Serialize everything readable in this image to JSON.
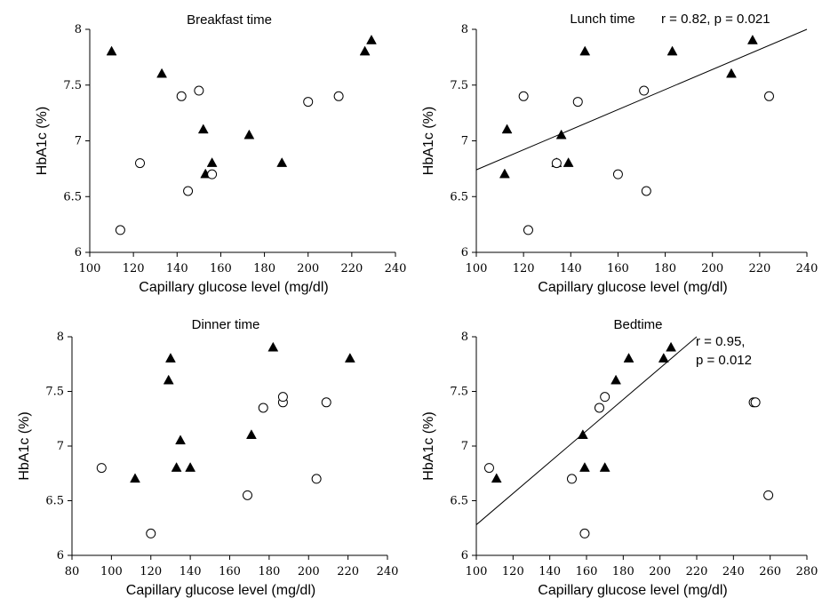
{
  "chart_data": [
    {
      "type": "scatter",
      "title": "Breakfast time",
      "xlabel": "Capillary glucose level (mg/dl)",
      "ylabel": "HbA1c (%)",
      "xlim": [
        100,
        240
      ],
      "ylim": [
        6,
        8
      ],
      "xticks": [
        100,
        120,
        140,
        160,
        180,
        200,
        220,
        240
      ],
      "yticks": [
        6,
        6.5,
        7,
        7.5,
        8
      ],
      "annotation": [],
      "regression": null,
      "series": [
        {
          "marker": "filled-triangle",
          "points": [
            [
              110,
              7.8
            ],
            [
              133,
              7.6
            ],
            [
              152,
              7.1
            ],
            [
              153,
              6.7
            ],
            [
              156,
              6.8
            ],
            [
              173,
              7.05
            ],
            [
              188,
              6.8
            ],
            [
              226,
              7.8
            ],
            [
              229,
              7.9
            ]
          ]
        },
        {
          "marker": "open-circle",
          "points": [
            [
              114,
              6.2
            ],
            [
              123,
              6.8
            ],
            [
              142,
              7.4
            ],
            [
              145,
              6.55
            ],
            [
              150,
              7.45
            ],
            [
              156,
              6.7
            ],
            [
              200,
              7.35
            ],
            [
              214,
              7.4
            ]
          ]
        }
      ]
    },
    {
      "type": "scatter",
      "title": "Lunch time",
      "xlabel": "Capillary glucose level (mg/dl)",
      "ylabel": "HbA1c (%)",
      "xlim": [
        100,
        240
      ],
      "ylim": [
        6,
        8
      ],
      "xticks": [
        100,
        120,
        140,
        160,
        180,
        200,
        220,
        240
      ],
      "yticks": [
        6,
        6.5,
        7,
        7.5,
        8
      ],
      "annotation": [
        "r = 0.82, p = 0.021"
      ],
      "regression": {
        "x1": 100,
        "y1": 6.74,
        "x2": 240,
        "y2": 8.0
      },
      "series": [
        {
          "marker": "filled-triangle",
          "points": [
            [
              112,
              6.7
            ],
            [
              113,
              7.1
            ],
            [
              134,
              6.8
            ],
            [
              136,
              7.05
            ],
            [
              139,
              6.8
            ],
            [
              146,
              7.8
            ],
            [
              183,
              7.8
            ],
            [
              208,
              7.6
            ],
            [
              217,
              7.9
            ]
          ]
        },
        {
          "marker": "open-circle",
          "points": [
            [
              120,
              7.4
            ],
            [
              122,
              6.2
            ],
            [
              134,
              6.8
            ],
            [
              143,
              7.35
            ],
            [
              160,
              6.7
            ],
            [
              171,
              7.45
            ],
            [
              172,
              6.55
            ],
            [
              224,
              7.4
            ]
          ]
        }
      ]
    },
    {
      "type": "scatter",
      "title": "Dinner time",
      "xlabel": "Capillary glucose level (mg/dl)",
      "ylabel": "HbA1c (%)",
      "xlim": [
        80,
        240
      ],
      "ylim": [
        6,
        8
      ],
      "xticks": [
        80,
        100,
        120,
        140,
        160,
        180,
        200,
        220,
        240
      ],
      "yticks": [
        6,
        6.5,
        7,
        7.5,
        8
      ],
      "annotation": [],
      "regression": null,
      "series": [
        {
          "marker": "filled-triangle",
          "points": [
            [
              112,
              6.7
            ],
            [
              129,
              7.6
            ],
            [
              130,
              7.8
            ],
            [
              133,
              6.8
            ],
            [
              135,
              7.05
            ],
            [
              140,
              6.8
            ],
            [
              171,
              7.1
            ],
            [
              182,
              7.9
            ],
            [
              221,
              7.8
            ]
          ]
        },
        {
          "marker": "open-circle",
          "points": [
            [
              95,
              6.8
            ],
            [
              120,
              6.2
            ],
            [
              169,
              6.55
            ],
            [
              177,
              7.35
            ],
            [
              187,
              7.4
            ],
            [
              187,
              7.45
            ],
            [
              204,
              6.7
            ],
            [
              209,
              7.4
            ]
          ]
        }
      ]
    },
    {
      "type": "scatter",
      "title": "Bedtime",
      "xlabel": "Capillary glucose level (mg/dl)",
      "ylabel": "HbA1c (%)",
      "xlim": [
        100,
        280
      ],
      "ylim": [
        6,
        8
      ],
      "xticks": [
        100,
        120,
        140,
        160,
        180,
        200,
        220,
        240,
        260,
        280
      ],
      "yticks": [
        6,
        6.5,
        7,
        7.5,
        8
      ],
      "annotation": [
        "r = 0.95,",
        "p = 0.012"
      ],
      "regression": {
        "x1": 100,
        "y1": 6.28,
        "x2": 220,
        "y2": 8.0
      },
      "series": [
        {
          "marker": "filled-triangle",
          "points": [
            [
              111,
              6.7
            ],
            [
              158,
              7.1
            ],
            [
              159,
              6.8
            ],
            [
              170,
              6.8
            ],
            [
              176,
              7.6
            ],
            [
              183,
              7.8
            ],
            [
              202,
              7.8
            ],
            [
              206,
              7.9
            ]
          ]
        },
        {
          "marker": "open-circle",
          "points": [
            [
              107,
              6.8
            ],
            [
              152,
              6.7
            ],
            [
              159,
              6.2
            ],
            [
              167,
              7.35
            ],
            [
              170,
              7.45
            ],
            [
              251,
              7.4
            ],
            [
              252,
              7.4
            ],
            [
              259,
              6.55
            ]
          ]
        }
      ]
    }
  ]
}
